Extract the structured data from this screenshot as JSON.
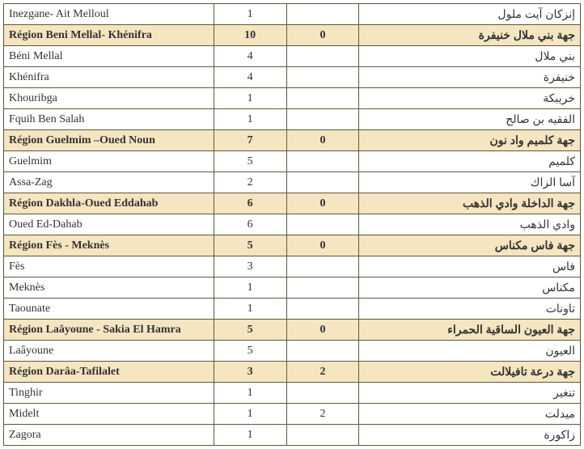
{
  "table": {
    "colors": {
      "region_bg": "#f5e5c0",
      "border": "#5a5a3a",
      "text": "#333333"
    },
    "rows": [
      {
        "type": "city",
        "fr": "Inezgane- Ait Melloul",
        "v1": "1",
        "v2": "",
        "ar": "إنزكان آيت ملول"
      },
      {
        "type": "region",
        "fr": "Région Beni Mellal- Khénifra",
        "v1": "10",
        "v2": "0",
        "ar": "جهة بني ملال خنيفرة"
      },
      {
        "type": "city",
        "fr": "Béni Mellal",
        "v1": "4",
        "v2": "",
        "ar": "بني ملال"
      },
      {
        "type": "city",
        "fr": "Khénifra",
        "v1": "4",
        "v2": "",
        "ar": "خنيفرة"
      },
      {
        "type": "city",
        "fr": "Khouribga",
        "v1": "1",
        "v2": "",
        "ar": "خريبكة"
      },
      {
        "type": "city",
        "fr": "Fquih Ben Salah",
        "v1": "1",
        "v2": "",
        "ar": "الفقيه بن صالح"
      },
      {
        "type": "region",
        "fr": "Région Guelmim –Oued Noun",
        "v1": "7",
        "v2": "0",
        "ar": "جهة كلميم واد نون"
      },
      {
        "type": "city",
        "fr": "Guelmim",
        "v1": "5",
        "v2": "",
        "ar": "كلميم"
      },
      {
        "type": "city",
        "fr": "Assa-Zag",
        "v1": "2",
        "v2": "",
        "ar": "آسا الزاك"
      },
      {
        "type": "region",
        "fr": "Région Dakhla-Oued Eddahab",
        "v1": "6",
        "v2": "0",
        "ar": "جهة الداخلة وادي الذهب"
      },
      {
        "type": "city",
        "fr": "Oued Ed-Dahab",
        "v1": "6",
        "v2": "",
        "ar": "وادي الذهب"
      },
      {
        "type": "region",
        "fr": "Région Fès - Meknès",
        "v1": "5",
        "v2": "0",
        "ar": "جهة فاس مكناس"
      },
      {
        "type": "city",
        "fr": "Fès",
        "v1": "3",
        "v2": "",
        "ar": "فاس"
      },
      {
        "type": "city",
        "fr": "Meknès",
        "v1": "1",
        "v2": "",
        "ar": "مكناس"
      },
      {
        "type": "city",
        "fr": "Taounate",
        "v1": "1",
        "v2": "",
        "ar": "تاونات"
      },
      {
        "type": "region",
        "fr": "Région Laâyoune - Sakia El Hamra",
        "v1": "5",
        "v2": "0",
        "ar": "جهة العيون الساقية الحمراء"
      },
      {
        "type": "city",
        "fr": "Laâyoune",
        "v1": "5",
        "v2": "",
        "ar": "العيون"
      },
      {
        "type": "region",
        "fr": "Région Darâa-Tafilalet",
        "v1": "3",
        "v2": "2",
        "ar": "جهة درعة تافيلالت"
      },
      {
        "type": "city",
        "fr": "Tinghir",
        "v1": "1",
        "v2": "",
        "ar": "تنغير"
      },
      {
        "type": "city",
        "fr": "Midelt",
        "v1": "1",
        "v2": "2",
        "ar": "ميدلت"
      },
      {
        "type": "city",
        "fr": "Zagora",
        "v1": "1",
        "v2": "",
        "ar": "زاكورة"
      }
    ]
  }
}
